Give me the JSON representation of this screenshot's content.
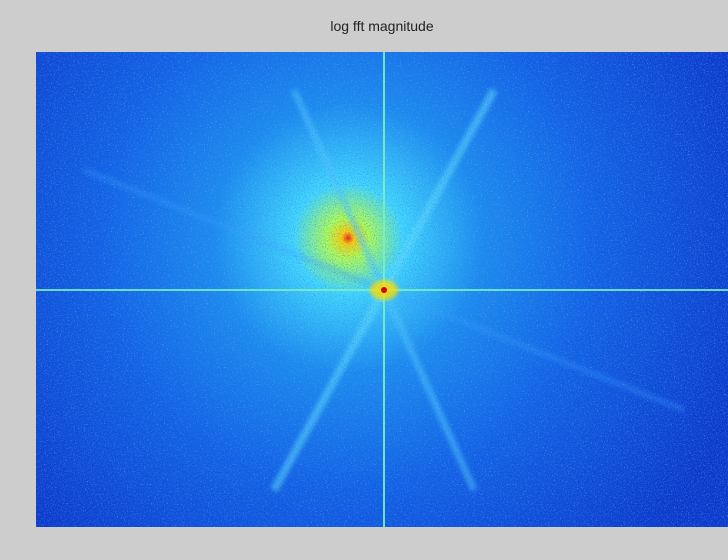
{
  "title": "log fft magnitude"
}
